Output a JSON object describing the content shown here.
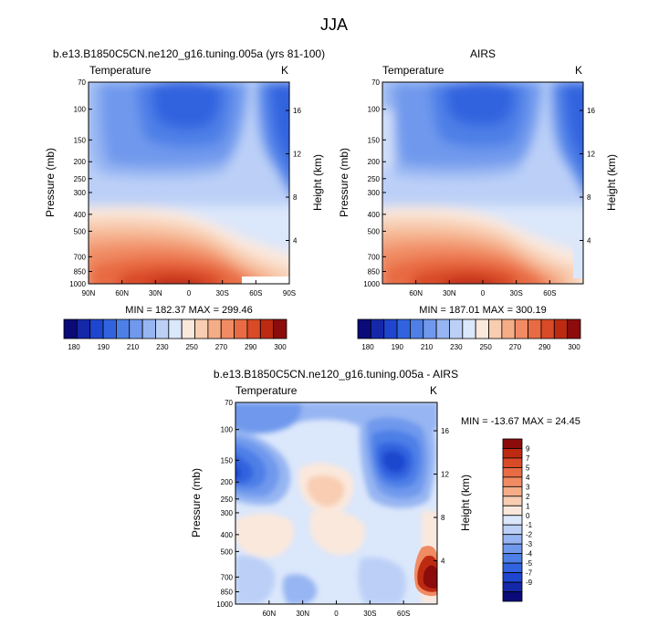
{
  "page_title": "JJA",
  "pressure_ticks": [
    70,
    100,
    150,
    200,
    250,
    300,
    400,
    500,
    700,
    850,
    1000
  ],
  "height_ticks": [
    4,
    8,
    12,
    16
  ],
  "level_colors": [
    "#0a0a78",
    "#1428a8",
    "#1f46cf",
    "#3263df",
    "#4d7fe7",
    "#7099ed",
    "#96b5f2",
    "#bcd0f7",
    "#dbe7fb",
    "#fbe8dc",
    "#f8cdb1",
    "#f5ad88",
    "#f08b63",
    "#e86b43",
    "#d94a27",
    "#bd2a12",
    "#8c0c0c"
  ],
  "chart_data": [
    {
      "type": "heatmap",
      "title": "b.e13.B1850C5CN.ne120_g16.tuning.005a (yrs 81-100)",
      "left_label": "Temperature",
      "right_label": "K",
      "ylabel": "Pressure (mb)",
      "ylabel_right": "Height (km)",
      "x_tick_labels": [
        "90N",
        "60N",
        "30N",
        "0",
        "30S",
        "60S",
        "90S"
      ],
      "x_ticks": [
        90,
        60,
        30,
        0,
        -30,
        -60,
        -90
      ],
      "xlim": [
        90,
        -90
      ],
      "ylim": [
        1000,
        70
      ],
      "y_scale": "log",
      "stats": "MIN = 182.37  MAX = 299.46",
      "min": 182.37,
      "max": 299.46,
      "colorbar_labels": [
        "180",
        "190",
        "210",
        "230",
        "250",
        "270",
        "290",
        "300"
      ],
      "levels": [
        180,
        185,
        190,
        200,
        210,
        220,
        230,
        240,
        250,
        260,
        270,
        280,
        290,
        295,
        300
      ]
    },
    {
      "type": "heatmap",
      "title": "AIRS",
      "left_label": "Temperature",
      "right_label": "K",
      "ylabel": "Pressure (mb)",
      "ylabel_right": "Height (km)",
      "x_tick_labels": [
        "60N",
        "30N",
        "0",
        "30S",
        "60S"
      ],
      "x_ticks": [
        60,
        30,
        0,
        -30,
        -60
      ],
      "xlim": [
        90,
        -90
      ],
      "ylim": [
        1000,
        70
      ],
      "y_scale": "log",
      "stats": "MIN = 187.01  MAX = 300.19",
      "min": 187.01,
      "max": 300.19,
      "colorbar_labels": [
        "180",
        "190",
        "210",
        "230",
        "250",
        "270",
        "290",
        "300"
      ],
      "levels": [
        180,
        185,
        190,
        200,
        210,
        220,
        230,
        240,
        250,
        260,
        270,
        280,
        290,
        295,
        300
      ]
    },
    {
      "type": "heatmap",
      "title": "b.e13.B1850C5CN.ne120_g16.tuning.005a - AIRS",
      "left_label": "Temperature",
      "right_label": "K",
      "ylabel": "Pressure (mb)",
      "ylabel_right": "Height (km)",
      "x_tick_labels": [
        "60N",
        "30N",
        "0",
        "30S",
        "60S"
      ],
      "x_ticks": [
        60,
        30,
        0,
        -30,
        -60
      ],
      "xlim": [
        90,
        -90
      ],
      "ylim": [
        1000,
        70
      ],
      "y_scale": "log",
      "stats": "MIN = -13.67  MAX =  24.45",
      "min": -13.67,
      "max": 24.45,
      "colorbar_labels": [
        "9",
        "7",
        "5",
        "4",
        "3",
        "2",
        "1",
        "0",
        "-1",
        "-2",
        "-3",
        "-4",
        "-5",
        "-7",
        "-9"
      ],
      "levels": [
        9,
        7,
        5,
        4,
        3,
        2,
        1,
        0,
        -1,
        -2,
        -3,
        -4,
        -5,
        -7,
        -9
      ]
    }
  ]
}
